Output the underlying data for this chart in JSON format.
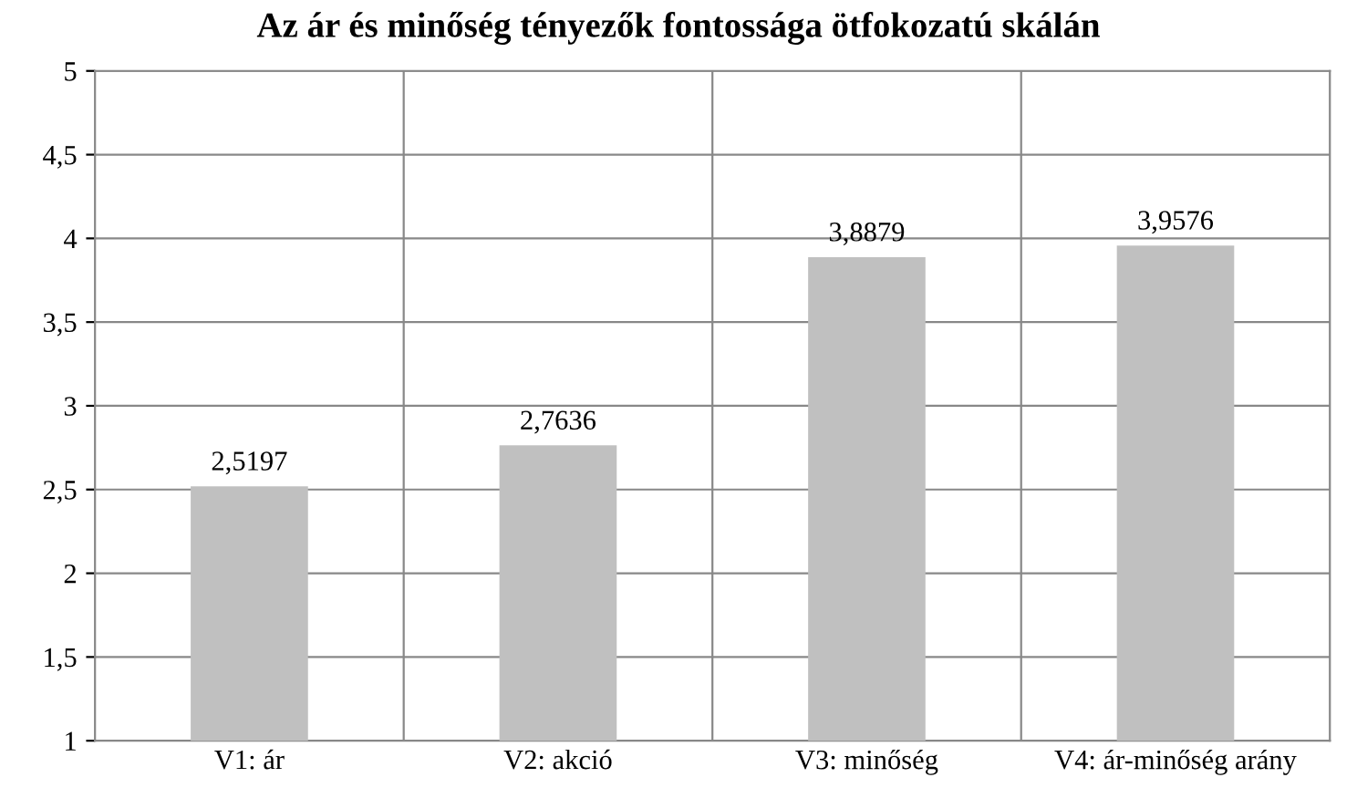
{
  "chart_data": {
    "type": "bar",
    "title": "Az ár és minőség tényezők fontossága ötfokozatú skálán",
    "categories": [
      "V1: ár",
      "V2: akció",
      "V3: minőség",
      "V4: ár-minőség arány"
    ],
    "values": [
      2.5197,
      2.7636,
      3.8879,
      3.9576
    ],
    "color": "#c0c0c0",
    "value_labels": [
      "2,5197",
      "2,7636",
      "3,8879",
      "3,9576"
    ],
    "ylim": [
      1,
      5
    ],
    "yticks": [
      1,
      {
        "value": 1.5,
        "label": "1,5"
      },
      2,
      {
        "value": 2.5,
        "label": "2,5"
      },
      3,
      {
        "value": 3.5,
        "label": "3,5"
      },
      4,
      {
        "value": 4.5,
        "label": "4,5"
      },
      5
    ],
    "grid": true
  }
}
